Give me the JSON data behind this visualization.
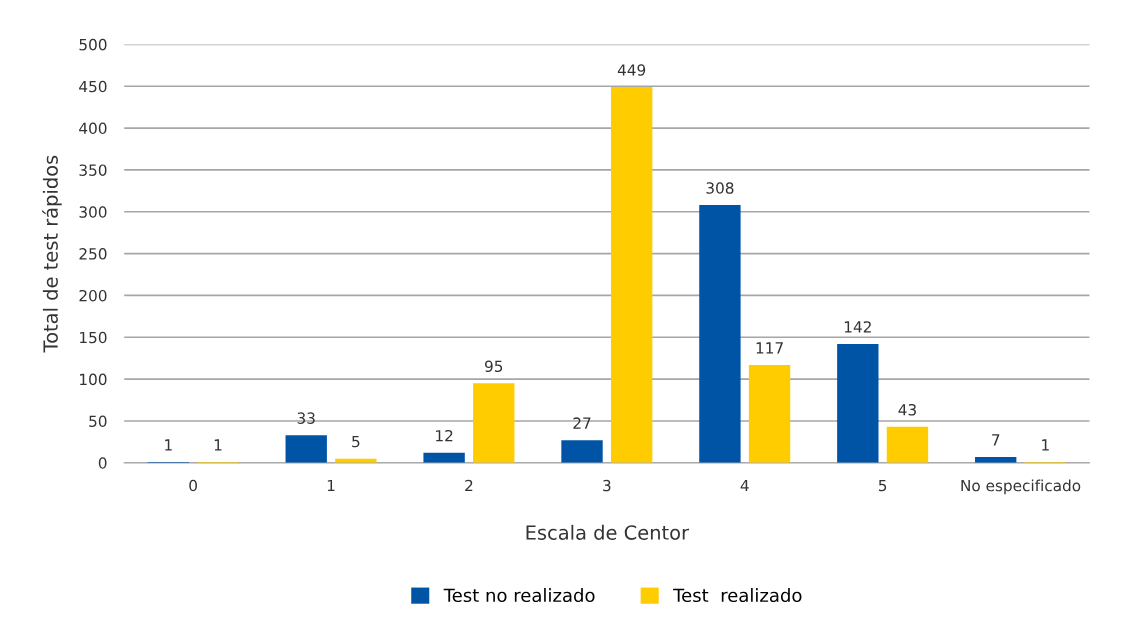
{
  "chart_data": {
    "type": "bar",
    "xlabel": "Escala de Centor",
    "ylabel": "Total de test rápidos",
    "categories": [
      "0",
      "1",
      "2",
      "3",
      "4",
      "5",
      "No especificado"
    ],
    "series": [
      {
        "name": "Test no realizado",
        "color": "#0054a6",
        "values": [
          1,
          33,
          12,
          27,
          308,
          142,
          7
        ]
      },
      {
        "name": "Test  realizado",
        "color": "#ffcc00",
        "values": [
          1,
          5,
          95,
          449,
          117,
          43,
          1
        ]
      }
    ],
    "ylim": [
      0,
      500
    ],
    "yticks": [
      0,
      50,
      100,
      150,
      200,
      250,
      300,
      350,
      400,
      450,
      500
    ],
    "grid": "y",
    "legend": "bottom",
    "data_labels": true
  }
}
